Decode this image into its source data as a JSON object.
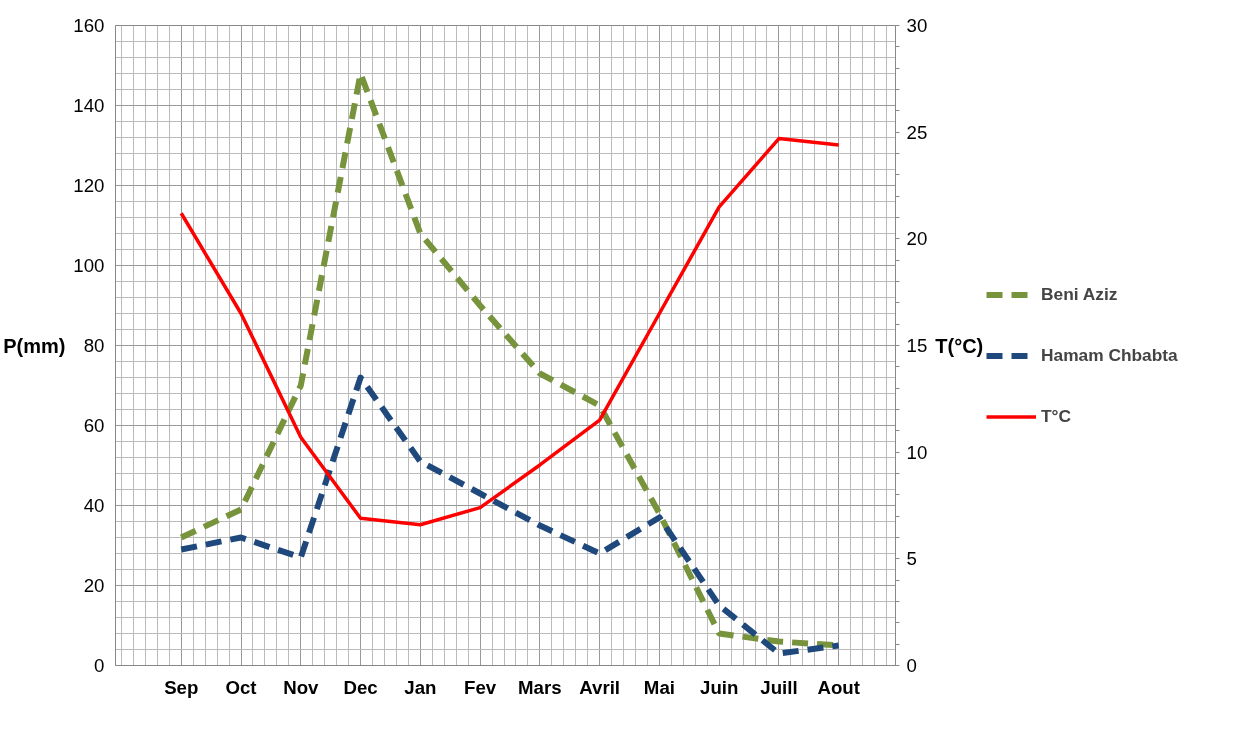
{
  "chart_data": {
    "type": "line",
    "categories": [
      "Sep",
      "Oct",
      "Nov",
      "Dec",
      "Jan",
      "Fev",
      "Mars",
      "Avril",
      "Mai",
      "Juin",
      "Juill",
      "Aout"
    ],
    "ylabel": "P(mm)",
    "y2label": "T(°C)",
    "ylim": [
      0,
      160
    ],
    "yticks": [
      0,
      20,
      40,
      60,
      80,
      100,
      120,
      140,
      160
    ],
    "y2lim": [
      0,
      30
    ],
    "y2ticks": [
      0,
      5,
      10,
      15,
      20,
      25,
      30
    ],
    "grid": true,
    "legend": "right",
    "marker": "none",
    "series": [
      {
        "name": "Beni Aziz",
        "color": "#77933c",
        "line_style": "dashed",
        "values": [
          32,
          39,
          70,
          148,
          108,
          90,
          73,
          65,
          38,
          8,
          6,
          5
        ]
      },
      {
        "name": "Hamam Chbabta",
        "color": "#1f497d",
        "line_style": "dashed",
        "values": [
          29,
          32,
          27,
          72,
          51,
          43,
          35,
          28,
          37,
          15,
          3,
          5
        ]
      },
      {
        "name": "T°C",
        "color": "#ff0000",
        "line_style": "solid",
        "axis": "y2",
        "values": [
          21.2,
          16.5,
          10.7,
          6.9,
          6.6,
          7.4,
          9.4,
          11.5,
          16.5,
          21.5,
          24.7,
          24.4
        ]
      }
    ]
  }
}
